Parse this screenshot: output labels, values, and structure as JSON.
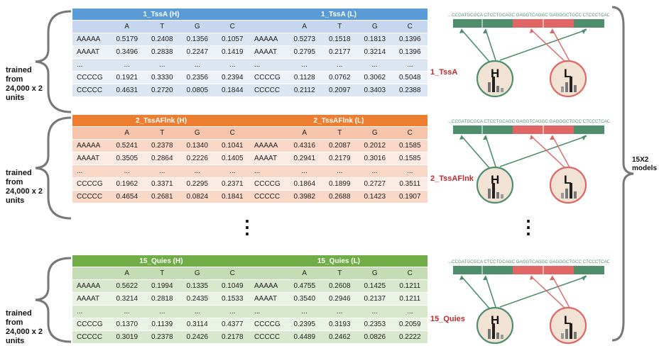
{
  "colors": {
    "blue_title": "#5B9BD5",
    "blue_head": "#C5D6EE",
    "blue_row": "#DCE6F3",
    "blue_row_alt": "#EDF2F9",
    "orange_title": "#ED7D31",
    "orange_head": "#F5C4AB",
    "orange_row": "#F9D8C8",
    "orange_row_alt": "#FCEBE3",
    "green_title": "#70AD47",
    "green_head": "#C4DDB5",
    "green_row": "#D7E8CC",
    "green_row_alt": "#EAF3E4",
    "seq_green": "#4E8E6C",
    "seq_red": "#E06666",
    "label_red": "#C0282D"
  },
  "groups": [
    {
      "side_label": [
        "trained",
        "from",
        "24,000 x 2",
        "units"
      ],
      "theme": "blue",
      "tables": [
        {
          "title": "1_TssA (H)",
          "columns": [
            "",
            "A",
            "T",
            "G",
            "C"
          ],
          "rows": [
            [
              "AAAAA",
              "0.5179",
              "0.2408",
              "0.1356",
              "0.1057"
            ],
            [
              "AAAAT",
              "0.3496",
              "0.2838",
              "0.2247",
              "0.1419"
            ],
            [
              "...",
              "...",
              "...",
              "...",
              "..."
            ],
            [
              "CCCCG",
              "0.1921",
              "0.3330",
              "0.2356",
              "0.2394"
            ],
            [
              "CCCCC",
              "0.4631",
              "0.2720",
              "0.0805",
              "0.1844"
            ]
          ]
        },
        {
          "title": "1_TssA (L)",
          "columns": [
            "",
            "A",
            "T",
            "G",
            "C"
          ],
          "rows": [
            [
              "AAAAA",
              "0.5273",
              "0.1518",
              "0.1813",
              "0.1396"
            ],
            [
              "AAAAT",
              "0.2795",
              "0.2177",
              "0.3214",
              "0.1396"
            ],
            [
              "...",
              "...",
              "...",
              "...",
              "..."
            ],
            [
              "CCCCG",
              "0.1128",
              "0.0762",
              "0.3062",
              "0.5048"
            ],
            [
              "CCCCC",
              "0.2112",
              "0.2097",
              "0.3403",
              "0.2388"
            ]
          ]
        }
      ],
      "model_label": "1_TssA"
    },
    {
      "side_label": [
        "trained",
        "from",
        "24,000 x 2",
        "units"
      ],
      "theme": "orange",
      "tables": [
        {
          "title": "2_TssAFlnk (H)",
          "columns": [
            "",
            "A",
            "T",
            "G",
            "C"
          ],
          "rows": [
            [
              "AAAAA",
              "0.5241",
              "0.2378",
              "0.1340",
              "0.1041"
            ],
            [
              "AAAAT",
              "0.3505",
              "0.2864",
              "0.2226",
              "0.1405"
            ],
            [
              "...",
              "...",
              "...",
              "...",
              "..."
            ],
            [
              "CCCCG",
              "0.1962",
              "0.3371",
              "0.2295",
              "0.2371"
            ],
            [
              "CCCCC",
              "0.4654",
              "0.2681",
              "0.0824",
              "0.1841"
            ]
          ]
        },
        {
          "title": "2_TssAFlnk (L)",
          "columns": [
            "",
            "A",
            "T",
            "G",
            "C"
          ],
          "rows": [
            [
              "AAAAA",
              "0.4316",
              "0.2087",
              "0.2012",
              "0.1585"
            ],
            [
              "AAAAT",
              "0.2941",
              "0.2179",
              "0.3016",
              "0.1585"
            ],
            [
              "...",
              "...",
              "...",
              "...",
              "..."
            ],
            [
              "CCCCG",
              "0.1864",
              "0.1899",
              "0.2727",
              "0.3511"
            ],
            [
              "CCCCC",
              "0.3982",
              "0.2688",
              "0.1423",
              "0.1907"
            ]
          ]
        }
      ],
      "model_label": "2_TssAFlnk"
    },
    {
      "side_label": [
        "trained",
        "from",
        "24,000 x 2",
        "units"
      ],
      "theme": "green",
      "tables": [
        {
          "title": "15_Quies (H)",
          "columns": [
            "",
            "A",
            "T",
            "G",
            "C"
          ],
          "rows": [
            [
              "AAAAA",
              "0.5622",
              "0.1994",
              "0.1335",
              "0.1049"
            ],
            [
              "AAAAT",
              "0.3214",
              "0.2818",
              "0.2435",
              "0.1533"
            ],
            [
              "...",
              "...",
              "...",
              "...",
              "..."
            ],
            [
              "CCCCG",
              "0.1370",
              "0.1139",
              "0.3114",
              "0.4377"
            ],
            [
              "CCCCC",
              "0.3019",
              "0.2378",
              "0.2426",
              "0.2178"
            ]
          ]
        },
        {
          "title": "15_Quies (L)",
          "columns": [
            "",
            "A",
            "T",
            "G",
            "C"
          ],
          "rows": [
            [
              "AAAAA",
              "0.4755",
              "0.2608",
              "0.1425",
              "0.1211"
            ],
            [
              "AAAAT",
              "0.3540",
              "0.2946",
              "0.2137",
              "0.1211"
            ],
            [
              "...",
              "...",
              "...",
              "...",
              "..."
            ],
            [
              "CCCCG",
              "0.2395",
              "0.3193",
              "0.2353",
              "0.2059"
            ],
            [
              "CCCCC",
              "0.4489",
              "0.2462",
              "0.0826",
              "0.2222"
            ]
          ]
        }
      ],
      "model_label": "15_Quies"
    }
  ],
  "sequence_text": "...CCGATGCGCA CTCCTGCAGC GAGGTCAGGC GAGGGCTGCC CTCCCTCACC...",
  "high_letter": "H",
  "low_letter": "L",
  "ellipsis": "⋮",
  "right_label": [
    "15X2",
    "models"
  ],
  "icons": [
    "brace-icon",
    "bar-chart-icon",
    "arrow-icon"
  ]
}
